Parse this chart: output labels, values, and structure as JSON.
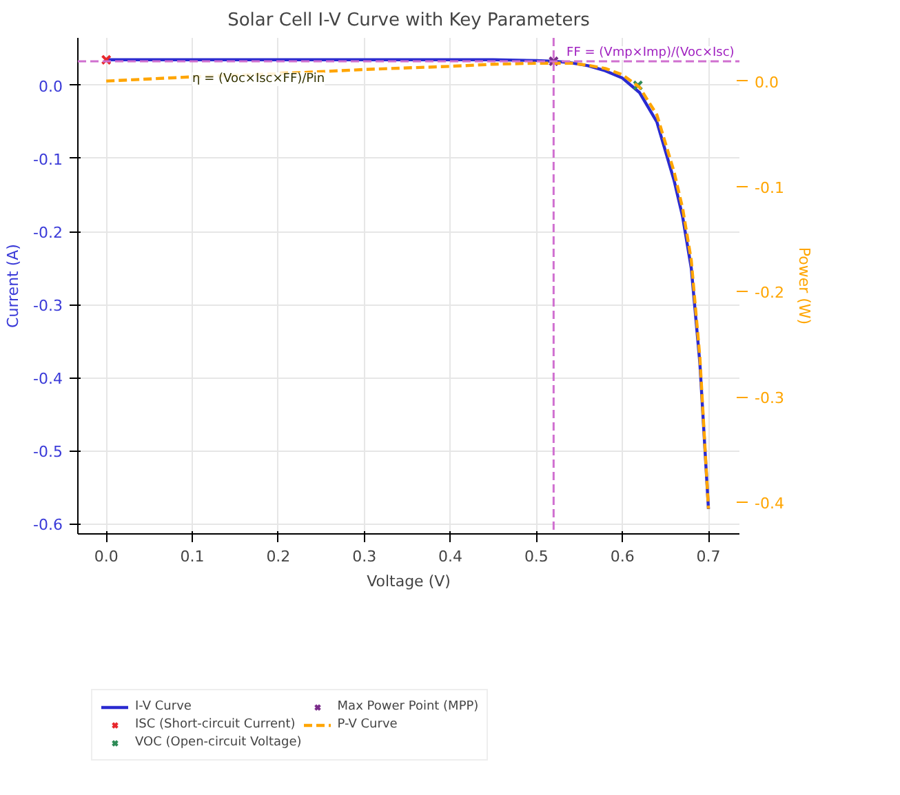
{
  "chart_data": {
    "type": "line",
    "title": "Solar Cell I-V Curve with Key Parameters",
    "xlabel": "Voltage (V)",
    "ylabel": "Current (A)",
    "y2label": "Power (W)",
    "xlim": [
      -0.033,
      0.736
    ],
    "xticks": [
      {
        "value": 0,
        "label": "0.0"
      },
      0.1,
      0.2,
      0.3,
      0.4,
      0.5,
      0.6,
      0.7
    ],
    "ylim": [
      -0.614,
      0.065
    ],
    "yticks": [
      -0.6,
      -0.5,
      -0.4,
      -0.3,
      -0.2,
      -0.1,
      {
        "value": 0,
        "label": "0.0"
      }
    ],
    "y2lim": [
      -0.43,
      0.041
    ],
    "y2ticks": [
      -0.4,
      -0.3,
      -0.2,
      -0.1,
      {
        "value": 0,
        "label": "0.0"
      }
    ],
    "grid": true,
    "legend": "bottom",
    "series": [
      {
        "name": "I-V Curve",
        "color": "#2b2bd0",
        "line_style": "solid",
        "x": [
          0,
          0.1,
          0.2,
          0.3,
          0.4,
          0.45,
          0.5,
          0.52,
          0.54,
          0.56,
          0.58,
          0.6,
          0.62,
          0.64,
          0.65,
          0.66,
          0.67,
          0.68,
          0.69,
          0.7
        ],
        "values": [
          0.035,
          0.035,
          0.035,
          0.035,
          0.035,
          0.035,
          0.034,
          0.033,
          0.031,
          0.027,
          0.02,
          0.01,
          -0.01,
          -0.05,
          -0.09,
          -0.13,
          -0.18,
          -0.25,
          -0.38,
          -0.58
        ]
      },
      {
        "name": "ISC (Short-circuit Current)",
        "type": "scatter",
        "marker": "cross",
        "color": "#e8282d",
        "x": [
          0
        ],
        "values": [
          0.035
        ]
      },
      {
        "name": "VOC (Open-circuit Voltage)",
        "type": "scatter",
        "marker": "cross",
        "color": "#2e8b57",
        "x": [
          0.618
        ],
        "values": [
          0.0
        ]
      },
      {
        "name": "Max Power Point (MPP)",
        "type": "scatter",
        "marker": "cross",
        "color": "#7b2d8b",
        "x": [
          0.52
        ],
        "values": [
          0.033
        ]
      },
      {
        "name": "P-V Curve",
        "axis": "y2",
        "color": "#ffa500",
        "line_style": "dashed",
        "x": [
          0,
          0.1,
          0.2,
          0.3,
          0.4,
          0.45,
          0.5,
          0.52,
          0.54,
          0.56,
          0.58,
          0.6,
          0.62,
          0.64,
          0.65,
          0.66,
          0.67,
          0.68,
          0.69,
          0.7
        ],
        "values": [
          0.0,
          0.004,
          0.007,
          0.011,
          0.014,
          0.016,
          0.017,
          0.017,
          0.017,
          0.015,
          0.012,
          0.006,
          -0.006,
          -0.032,
          -0.059,
          -0.086,
          -0.121,
          -0.17,
          -0.262,
          -0.406
        ]
      }
    ],
    "ref_lines": [
      {
        "axis": "x",
        "value": 0.52,
        "color": "#d070d0",
        "line_style": "dashed"
      },
      {
        "axis": "y",
        "value": 0.033,
        "color": "#d070d0",
        "line_style": "dashed"
      }
    ],
    "annotations": [
      {
        "text": "η = (Voc×Isc×FF)/Pin",
        "x": 0.1,
        "y": 0.016
      },
      {
        "text": "FF = (Vmp×Imp)/(Voc×Isc)",
        "x": 0.535,
        "y": 0.033
      }
    ]
  }
}
